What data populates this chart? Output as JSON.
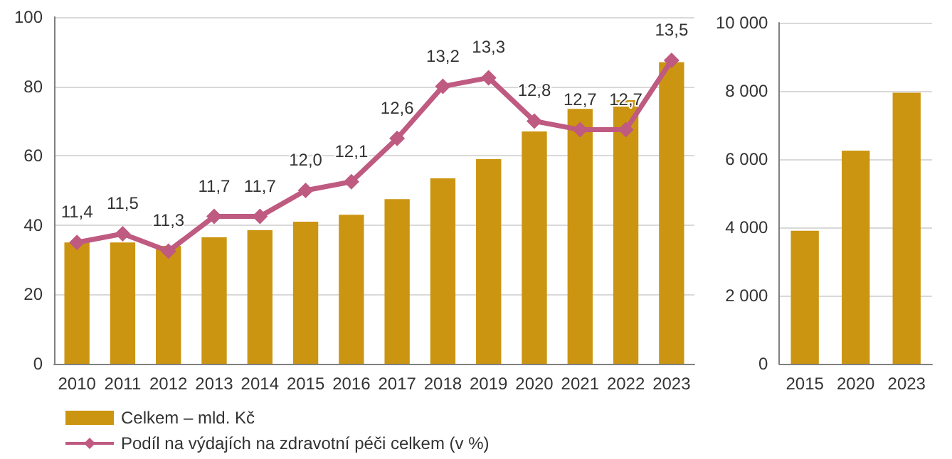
{
  "chart_data": [
    {
      "type": "bar",
      "categories": [
        "2010",
        "2011",
        "2012",
        "2013",
        "2014",
        "2015",
        "2016",
        "2017",
        "2018",
        "2019",
        "2020",
        "2021",
        "2022",
        "2023"
      ],
      "series": [
        {
          "name": "Celkem – mld. Kč",
          "color": "#cc9511",
          "values": [
            35,
            35,
            34,
            36.5,
            38.5,
            41,
            43,
            47.5,
            53.5,
            59,
            67,
            73.5,
            76,
            87
          ]
        },
        {
          "type": "line",
          "axis": "y2",
          "name": "Podíl na výdajích na zdravotní péči celkem (v %)",
          "color": "#bf5a80",
          "values": [
            11.4,
            11.5,
            11.3,
            11.7,
            11.7,
            12.0,
            12.1,
            12.6,
            13.2,
            13.3,
            12.8,
            12.7,
            12.7,
            13.5
          ],
          "value_labels": [
            "11,4",
            "11,5",
            "11,3",
            "11,7",
            "11,7",
            "12,0",
            "12,1",
            "12,6",
            "13,2",
            "13,3",
            "12,8",
            "12,7",
            "12,7",
            "13,5"
          ]
        }
      ],
      "ylim": [
        0,
        100
      ],
      "yticks": [
        0,
        20,
        40,
        60,
        80,
        100
      ],
      "y2lim": [
        10,
        14
      ],
      "grid": "y",
      "legend": "bottom left",
      "marker": "diamond",
      "line_style": "solid"
    },
    {
      "type": "bar",
      "categories": [
        "2015",
        "2020",
        "2023"
      ],
      "values": [
        3900,
        6250,
        7950
      ],
      "color": "#cc9511",
      "ylim": [
        0,
        10000
      ],
      "yticks": [
        0,
        {
          "value": 2000,
          "label": "2 000"
        },
        {
          "value": 4000,
          "label": "4 000"
        },
        {
          "value": 6000,
          "label": "6 000"
        },
        {
          "value": 8000,
          "label": "8 000"
        },
        {
          "value": 10000,
          "label": "10 000"
        }
      ],
      "grid": "y"
    }
  ]
}
